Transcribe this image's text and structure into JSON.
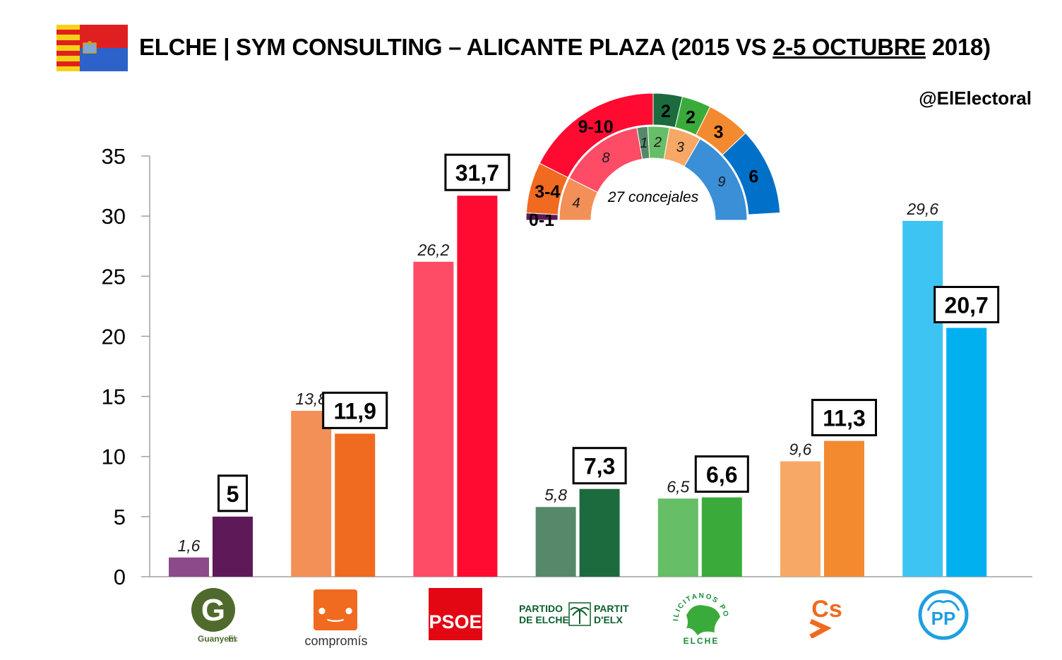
{
  "header": {
    "title_prefix": "ELCHE | SYM CONSULTING – ALICANTE PLAZA (2015 VS ",
    "title_underlined": "2-5 OCTUBRE",
    "title_suffix": " 2018)",
    "handle": "@ElElectoral"
  },
  "colors": {
    "flag_yellow": "#f7d117",
    "flag_red": "#e02020",
    "flag_blue": "#2c62c9"
  },
  "chart_data": {
    "type": "bar",
    "ylim": [
      0,
      35
    ],
    "yticks": [
      0,
      5,
      10,
      15,
      20,
      25,
      30,
      35
    ],
    "categories": [
      "Guanyem Elx",
      "Compromís",
      "PSOE",
      "Partido de Elche",
      "Ilicitanos por Elche",
      "Cs",
      "PP"
    ],
    "series": [
      {
        "values": [
          1.6,
          13.8,
          26.2,
          5.8,
          6.5,
          9.6,
          29.6
        ],
        "labels": [
          "1,6",
          "13,8",
          "26,2",
          "5,8",
          "6,5",
          "9,6",
          "29,6"
        ],
        "colors": [
          "#8c4a8a",
          "#f29057",
          "#ff4c66",
          "#56896a",
          "#66be66",
          "#f7a866",
          "#3ec4f2"
        ]
      },
      {
        "values": [
          5,
          11.9,
          31.7,
          7.3,
          6.6,
          11.3,
          20.7
        ],
        "labels": [
          "5",
          "11,9",
          "31,7",
          "7,3",
          "6,6",
          "11,3",
          "20,7"
        ],
        "colors": [
          "#5e1a58",
          "#f06a20",
          "#ff0a30",
          "#1c6b3e",
          "#3aab3a",
          "#f38a30",
          "#00b0ef"
        ]
      }
    ],
    "seats": {
      "total_label": "27 concejales",
      "inner_2015": [
        {
          "label": "4",
          "seats": 4,
          "color": "#f29057"
        },
        {
          "label": "8",
          "seats": 8,
          "color": "#ff4c66"
        },
        {
          "label": "1",
          "seats": 1,
          "color": "#56896a"
        },
        {
          "label": "2",
          "seats": 2,
          "color": "#66be66"
        },
        {
          "label": "3",
          "seats": 3,
          "color": "#f7a866"
        },
        {
          "label": "9",
          "seats": 9,
          "color": "#3a8fd6"
        }
      ],
      "outer_2018": [
        {
          "label": "0-1",
          "seats": 0.5,
          "color": "#5e1a58"
        },
        {
          "label": "3-4",
          "seats": 3.5,
          "color": "#f06a20"
        },
        {
          "label": "9-10",
          "seats": 9.5,
          "color": "#ff0a30"
        },
        {
          "label": "2",
          "seats": 2,
          "color": "#1c6b3e"
        },
        {
          "label": "2",
          "seats": 2,
          "color": "#3aab3a"
        },
        {
          "label": "3",
          "seats": 3,
          "color": "#f38a30"
        },
        {
          "label": "6",
          "seats": 6,
          "color": "#0070c8"
        }
      ]
    }
  },
  "logos": {
    "guanyem": {
      "letter": "G",
      "name": "Guanyem",
      "suffix": "Elx"
    },
    "compromis": {
      "smile": "•‿•",
      "name": "compromís"
    },
    "psoe": {
      "name": "PSOE"
    },
    "partido_elche": {
      "l1": "PARTIDO",
      "l2": "DE ELCHE",
      "r1": "PARTIT",
      "r2": "D'ELX"
    },
    "ilicitanos": {
      "top": "ILICITANOS POR",
      "bottom": "ELCHE"
    },
    "cs": {
      "name": "Cs"
    },
    "pp": {
      "name": "PP"
    }
  }
}
